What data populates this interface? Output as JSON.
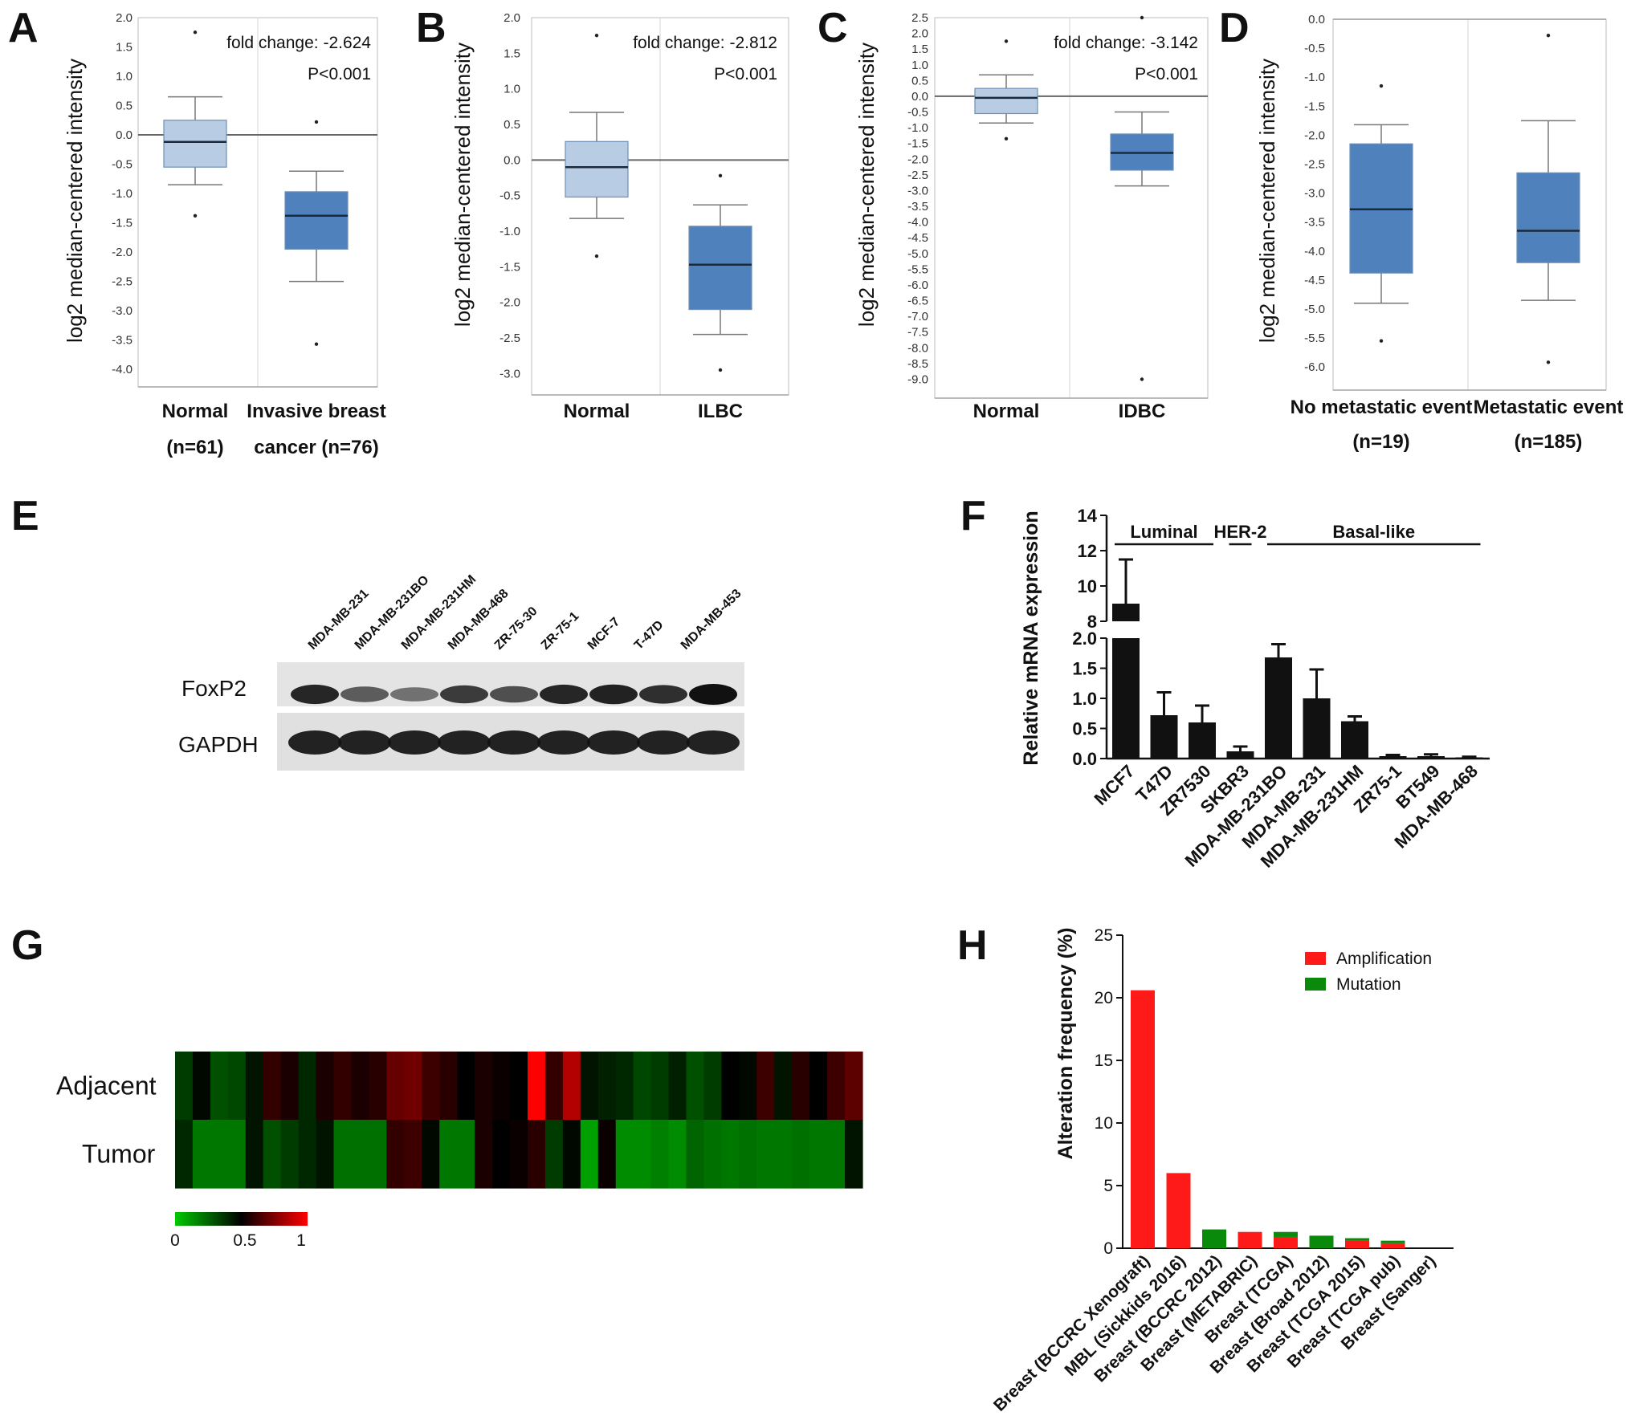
{
  "chart_data": [
    {
      "panel": "A",
      "type": "box",
      "ylabel": "log2 median-centered intensity",
      "ylim": [
        -4.3,
        2.0
      ],
      "yticks": [
        "2.0",
        "1.5",
        "1.0",
        "0.5",
        "0.0",
        "-0.5",
        "-1.0",
        "-1.5",
        "-2.0",
        "-2.5",
        "-3.0",
        "-3.5",
        "-4.0"
      ],
      "ytick_values": [
        2.0,
        1.5,
        1.0,
        0.5,
        0.0,
        -0.5,
        -1.0,
        -1.5,
        -2.0,
        -2.5,
        -3.0,
        -3.5,
        -4.0
      ],
      "annotations": [
        "fold change: -2.624",
        "P<0.001"
      ],
      "categories": [
        {
          "line1": "Normal",
          "line2": "(n=61)",
          "min": -0.85,
          "q1": -0.55,
          "median": -0.12,
          "q3": 0.25,
          "max": 0.65,
          "outliers": [
            1.75,
            -1.38
          ],
          "color": "#b8cce4"
        },
        {
          "line1": "Invasive breast",
          "line2": "cancer (n=76)",
          "min": -2.5,
          "q1": -1.95,
          "median": -1.38,
          "q3": -0.97,
          "max": -0.62,
          "outliers": [
            0.22,
            -3.57
          ],
          "color": "#4f81bd"
        }
      ]
    },
    {
      "panel": "B",
      "type": "box",
      "ylabel": "log2 median-centered intensity",
      "ylim": [
        -3.3,
        2.0
      ],
      "yticks": [
        "2.0",
        "1.5",
        "1.0",
        "0.5",
        "0.0",
        "-0.5",
        "-1.0",
        "-1.5",
        "-2.0",
        "-2.5",
        "-3.0"
      ],
      "ytick_values": [
        2.0,
        1.5,
        1.0,
        0.5,
        0.0,
        -0.5,
        -1.0,
        -1.5,
        -2.0,
        -2.5,
        -3.0
      ],
      "annotations": [
        "fold change: -2.812",
        "P<0.001"
      ],
      "categories": [
        {
          "line1": "Normal",
          "line2": "",
          "min": -0.82,
          "q1": -0.52,
          "median": -0.1,
          "q3": 0.26,
          "max": 0.67,
          "outliers": [
            1.75,
            -1.35
          ],
          "color": "#b8cce4"
        },
        {
          "line1": "ILBC",
          "line2": "",
          "min": -2.45,
          "q1": -2.1,
          "median": -1.47,
          "q3": -0.93,
          "max": -0.63,
          "outliers": [
            -0.22,
            -2.95
          ],
          "color": "#4f81bd"
        }
      ]
    },
    {
      "panel": "C",
      "type": "box",
      "ylabel": "log2 median-centered intensity",
      "ylim": [
        -9.6,
        2.5
      ],
      "yticks": [
        "2.5",
        "2.0",
        "1.5",
        "1.0",
        "0.5",
        "0.0",
        "-0.5",
        "-1.0",
        "-1.5",
        "-2.0",
        "-2.5",
        "-3.0",
        "-3.5",
        "-4.0",
        "-4.5",
        "-5.0",
        "-5.5",
        "-6.0",
        "-6.5",
        "-7.0",
        "-7.5",
        "-8.0",
        "-8.5",
        "-9.0"
      ],
      "ytick_values": [
        2.5,
        2.0,
        1.5,
        1.0,
        0.5,
        0.0,
        -0.5,
        -1.0,
        -1.5,
        -2.0,
        -2.5,
        -3.0,
        -3.5,
        -4.0,
        -4.5,
        -5.0,
        -5.5,
        -6.0,
        -6.5,
        -7.0,
        -7.5,
        -8.0,
        -8.5,
        -9.0
      ],
      "annotations": [
        "fold change: -3.142",
        "P<0.001"
      ],
      "categories": [
        {
          "line1": "Normal",
          "line2": "",
          "min": -0.85,
          "q1": -0.55,
          "median": -0.05,
          "q3": 0.25,
          "max": 0.68,
          "outliers": [
            1.75,
            -1.35
          ],
          "color": "#b8cce4"
        },
        {
          "line1": "IDBC",
          "line2": "",
          "min": -2.85,
          "q1": -2.35,
          "median": -1.8,
          "q3": -1.2,
          "max": -0.5,
          "outliers": [
            2.5,
            -9.0
          ],
          "color": "#4f81bd"
        }
      ]
    },
    {
      "panel": "D",
      "type": "box",
      "ylabel": "log2 median-centered intensity",
      "ylim": [
        -6.4,
        0.0
      ],
      "yticks": [
        "0.0",
        "-0.5",
        "-1.0",
        "-1.5",
        "-2.0",
        "-2.5",
        "-3.0",
        "-3.5",
        "-4.0",
        "-4.5",
        "-5.0",
        "-5.5",
        "-6.0"
      ],
      "ytick_values": [
        0.0,
        -0.5,
        -1.0,
        -1.5,
        -2.0,
        -2.5,
        -3.0,
        -3.5,
        -4.0,
        -4.5,
        -5.0,
        -5.5,
        -6.0
      ],
      "annotations": [],
      "categories": [
        {
          "line1": "No metastatic event",
          "line2": "(n=19)",
          "min": -4.9,
          "q1": -4.38,
          "median": -3.28,
          "q3": -2.15,
          "max": -1.82,
          "outliers": [
            -1.15,
            -5.55
          ],
          "color": "#4f81bd"
        },
        {
          "line1": "Metastatic event",
          "line2": "(n=185)",
          "min": -4.85,
          "q1": -4.2,
          "median": -3.65,
          "q3": -2.65,
          "max": -1.75,
          "outliers": [
            -0.28,
            -5.92
          ],
          "color": "#4f81bd"
        }
      ]
    },
    {
      "panel": "F",
      "type": "bar",
      "ylabel": "Relative mRNA expression",
      "yticks_lower": [
        "0.0",
        "0.5",
        "1.0",
        "1.5",
        "2.0"
      ],
      "yticks_lower_values": [
        0.0,
        0.5,
        1.0,
        1.5,
        2.0
      ],
      "yticks_upper": [
        "8",
        "10",
        "12",
        "14"
      ],
      "yticks_upper_values": [
        8,
        10,
        12,
        14
      ],
      "broken_axis": [
        2.0,
        8.0
      ],
      "groups": [
        {
          "label": "Luminal",
          "from": 0,
          "to": 2
        },
        {
          "label": "HER-2",
          "from": 3,
          "to": 3
        },
        {
          "label": "Basal-like",
          "from": 4,
          "to": 9
        }
      ],
      "categories": [
        "MCF7",
        "T47D",
        "ZR7530",
        "SKBR3",
        "MDA-MB-231BO",
        "MDA-MB-231",
        "MDA-MB-231HM",
        "ZR75-1",
        "BT549",
        "MDA-MB-468"
      ],
      "values": [
        9.0,
        0.72,
        0.6,
        0.12,
        1.68,
        1.0,
        0.62,
        0.04,
        0.04,
        0.02
      ],
      "errors": [
        2.5,
        0.38,
        0.28,
        0.08,
        0.22,
        0.48,
        0.08,
        0.02,
        0.03,
        0.01
      ]
    },
    {
      "panel": "G",
      "type": "heatmap",
      "rows": [
        "Adjacent",
        "Tumor"
      ],
      "scale_ticks": [
        "0",
        "0.5",
        "1"
      ],
      "values": [
        [
          0.35,
          0.48,
          0.3,
          0.32,
          0.45,
          0.6,
          0.55,
          0.4,
          0.55,
          0.6,
          0.55,
          0.58,
          0.7,
          0.72,
          0.62,
          0.58,
          0.5,
          0.55,
          0.52,
          0.5,
          1.0,
          0.6,
          0.85,
          0.45,
          0.42,
          0.4,
          0.32,
          0.35,
          0.42,
          0.3,
          0.35,
          0.5,
          0.48,
          0.62,
          0.45,
          0.58,
          0.5,
          0.62,
          0.68
        ],
        [
          0.4,
          0.2,
          0.2,
          0.2,
          0.45,
          0.3,
          0.35,
          0.4,
          0.45,
          0.22,
          0.22,
          0.22,
          0.6,
          0.62,
          0.48,
          0.2,
          0.2,
          0.55,
          0.5,
          0.52,
          0.58,
          0.35,
          0.48,
          0.1,
          0.52,
          0.15,
          0.15,
          0.18,
          0.15,
          0.25,
          0.22,
          0.2,
          0.22,
          0.2,
          0.2,
          0.22,
          0.2,
          0.2,
          0.45
        ]
      ]
    },
    {
      "panel": "H",
      "type": "stacked-bar",
      "ylabel": "Alteration frequency (%)",
      "ylim": [
        0,
        25
      ],
      "yticks": [
        "0",
        "5",
        "10",
        "15",
        "20",
        "25"
      ],
      "ytick_values": [
        0,
        5,
        10,
        15,
        20,
        25
      ],
      "categories": [
        "Breast (BCCRC Xenograft)",
        "MBL (Sickkids 2016)",
        "Breast (BCCRC 2012)",
        "Breast (METABRIC)",
        "Breast (TCGA)",
        "Breast (Broad 2012)",
        "Breast (TCGA 2015)",
        "Breast (TCGA pub)",
        "Breast (Sanger)"
      ],
      "series": [
        {
          "name": "Amplification",
          "color": "#ff1a1a",
          "values": [
            20.6,
            6.0,
            0.0,
            1.3,
            0.9,
            0.0,
            0.6,
            0.4,
            0.0
          ]
        },
        {
          "name": "Mutation",
          "color": "#0a8a0a",
          "values": [
            0.0,
            0.0,
            1.5,
            0.0,
            0.4,
            1.0,
            0.2,
            0.2,
            0.0
          ]
        }
      ]
    }
  ],
  "panel_letters": [
    "A",
    "B",
    "C",
    "D",
    "E",
    "F",
    "G",
    "H"
  ],
  "western_blot": {
    "lanes": [
      "MDA-MB-231",
      "MDA-MB-231BO",
      "MDA-MB-231HM",
      "MDA-MB-468",
      "ZR-75-30",
      "ZR-75-1",
      "MCF-7",
      "T-47D",
      "MDA-MB-453"
    ],
    "rows": [
      "FoxP2",
      "GAPDH"
    ],
    "foxp2_intensity": [
      0.85,
      0.45,
      0.3,
      0.7,
      0.55,
      0.85,
      0.88,
      0.78,
      1.0
    ]
  }
}
